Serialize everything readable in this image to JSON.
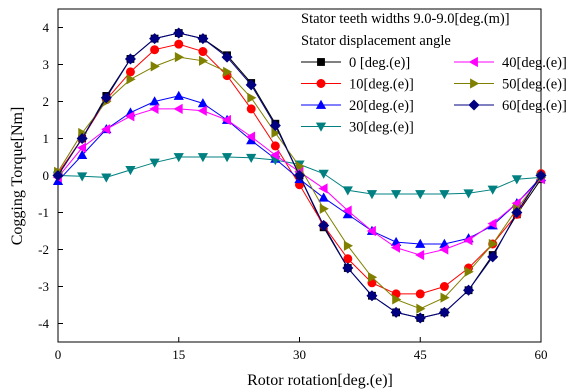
{
  "chart_data": {
    "type": "line",
    "title": "",
    "xlabel": "Rotor rotation[deg.(e)]",
    "ylabel": "Cogging Torque[Nm]",
    "xlim": [
      0,
      60
    ],
    "ylim": [
      -4.5,
      4.5
    ],
    "x_ticks": [
      0,
      15,
      30,
      45,
      60
    ],
    "y_ticks": [
      -4,
      -3,
      -2,
      -1,
      0,
      1,
      2,
      3,
      4
    ],
    "grid": false,
    "legend_placement": "top-right",
    "legend_header": [
      "Stator teeth widths 9.0-9.0[deg.(m)]",
      "Stator displacement angle"
    ],
    "x": [
      0,
      3,
      6,
      9,
      12,
      15,
      18,
      21,
      24,
      27,
      30,
      33,
      36,
      39,
      42,
      45,
      48,
      51,
      54,
      57,
      60
    ],
    "series": [
      {
        "name": "0  [deg.(e)]",
        "color": "#000000",
        "marker": "square",
        "values": [
          0.05,
          1.0,
          2.15,
          3.15,
          3.7,
          3.85,
          3.7,
          3.25,
          2.5,
          1.4,
          0.0,
          -1.4,
          -2.5,
          -3.25,
          -3.7,
          -3.85,
          -3.7,
          -3.1,
          -2.15,
          -1.05,
          -0.1
        ]
      },
      {
        "name": "10[deg.(e)]",
        "color": "#ff0000",
        "marker": "circle",
        "values": [
          0.05,
          1.0,
          2.05,
          2.8,
          3.4,
          3.55,
          3.35,
          2.7,
          1.8,
          0.8,
          -0.25,
          -1.35,
          -2.25,
          -2.9,
          -3.2,
          -3.2,
          -3.0,
          -2.5,
          -1.85,
          -1.05,
          0.05
        ]
      },
      {
        "name": "20[deg.(e)]",
        "color": "#0000ff",
        "marker": "triangle-up",
        "values": [
          -0.15,
          0.55,
          1.25,
          1.7,
          2.0,
          2.15,
          1.95,
          1.5,
          0.95,
          0.45,
          -0.1,
          -0.6,
          -1.05,
          -1.5,
          -1.8,
          -1.85,
          -1.85,
          -1.7,
          -1.35,
          -0.75,
          -0.05
        ]
      },
      {
        "name": "30[deg.(e)]",
        "color": "#008080",
        "marker": "triangle-down",
        "values": [
          0.0,
          -0.02,
          -0.05,
          0.15,
          0.35,
          0.5,
          0.5,
          0.5,
          0.48,
          0.42,
          0.3,
          0.05,
          -0.4,
          -0.5,
          -0.5,
          -0.5,
          -0.5,
          -0.48,
          -0.38,
          -0.1,
          -0.05
        ]
      },
      {
        "name": "40[deg.(e)]",
        "color": "#ff00ff",
        "marker": "triangle-left",
        "values": [
          -0.05,
          0.75,
          1.25,
          1.6,
          1.8,
          1.8,
          1.75,
          1.5,
          1.05,
          0.55,
          0.1,
          -0.35,
          -0.95,
          -1.5,
          -1.95,
          -2.15,
          -2.0,
          -1.75,
          -1.3,
          -0.75,
          -0.1
        ]
      },
      {
        "name": "50[deg.(e)]",
        "color": "#808000",
        "marker": "triangle-right",
        "values": [
          0.1,
          1.15,
          2.0,
          2.6,
          2.95,
          3.2,
          3.1,
          2.8,
          2.1,
          1.15,
          0.25,
          -0.9,
          -1.9,
          -2.75,
          -3.35,
          -3.6,
          -3.3,
          -2.6,
          -1.85,
          -0.9,
          -0.05
        ]
      },
      {
        "name": "60[deg.(e)]",
        "color": "#000080",
        "marker": "diamond",
        "values": [
          0.0,
          1.0,
          2.1,
          3.15,
          3.7,
          3.85,
          3.7,
          3.2,
          2.45,
          1.35,
          0.0,
          -1.35,
          -2.5,
          -3.25,
          -3.7,
          -3.85,
          -3.7,
          -3.1,
          -2.2,
          -1.0,
          0.0
        ]
      }
    ]
  }
}
